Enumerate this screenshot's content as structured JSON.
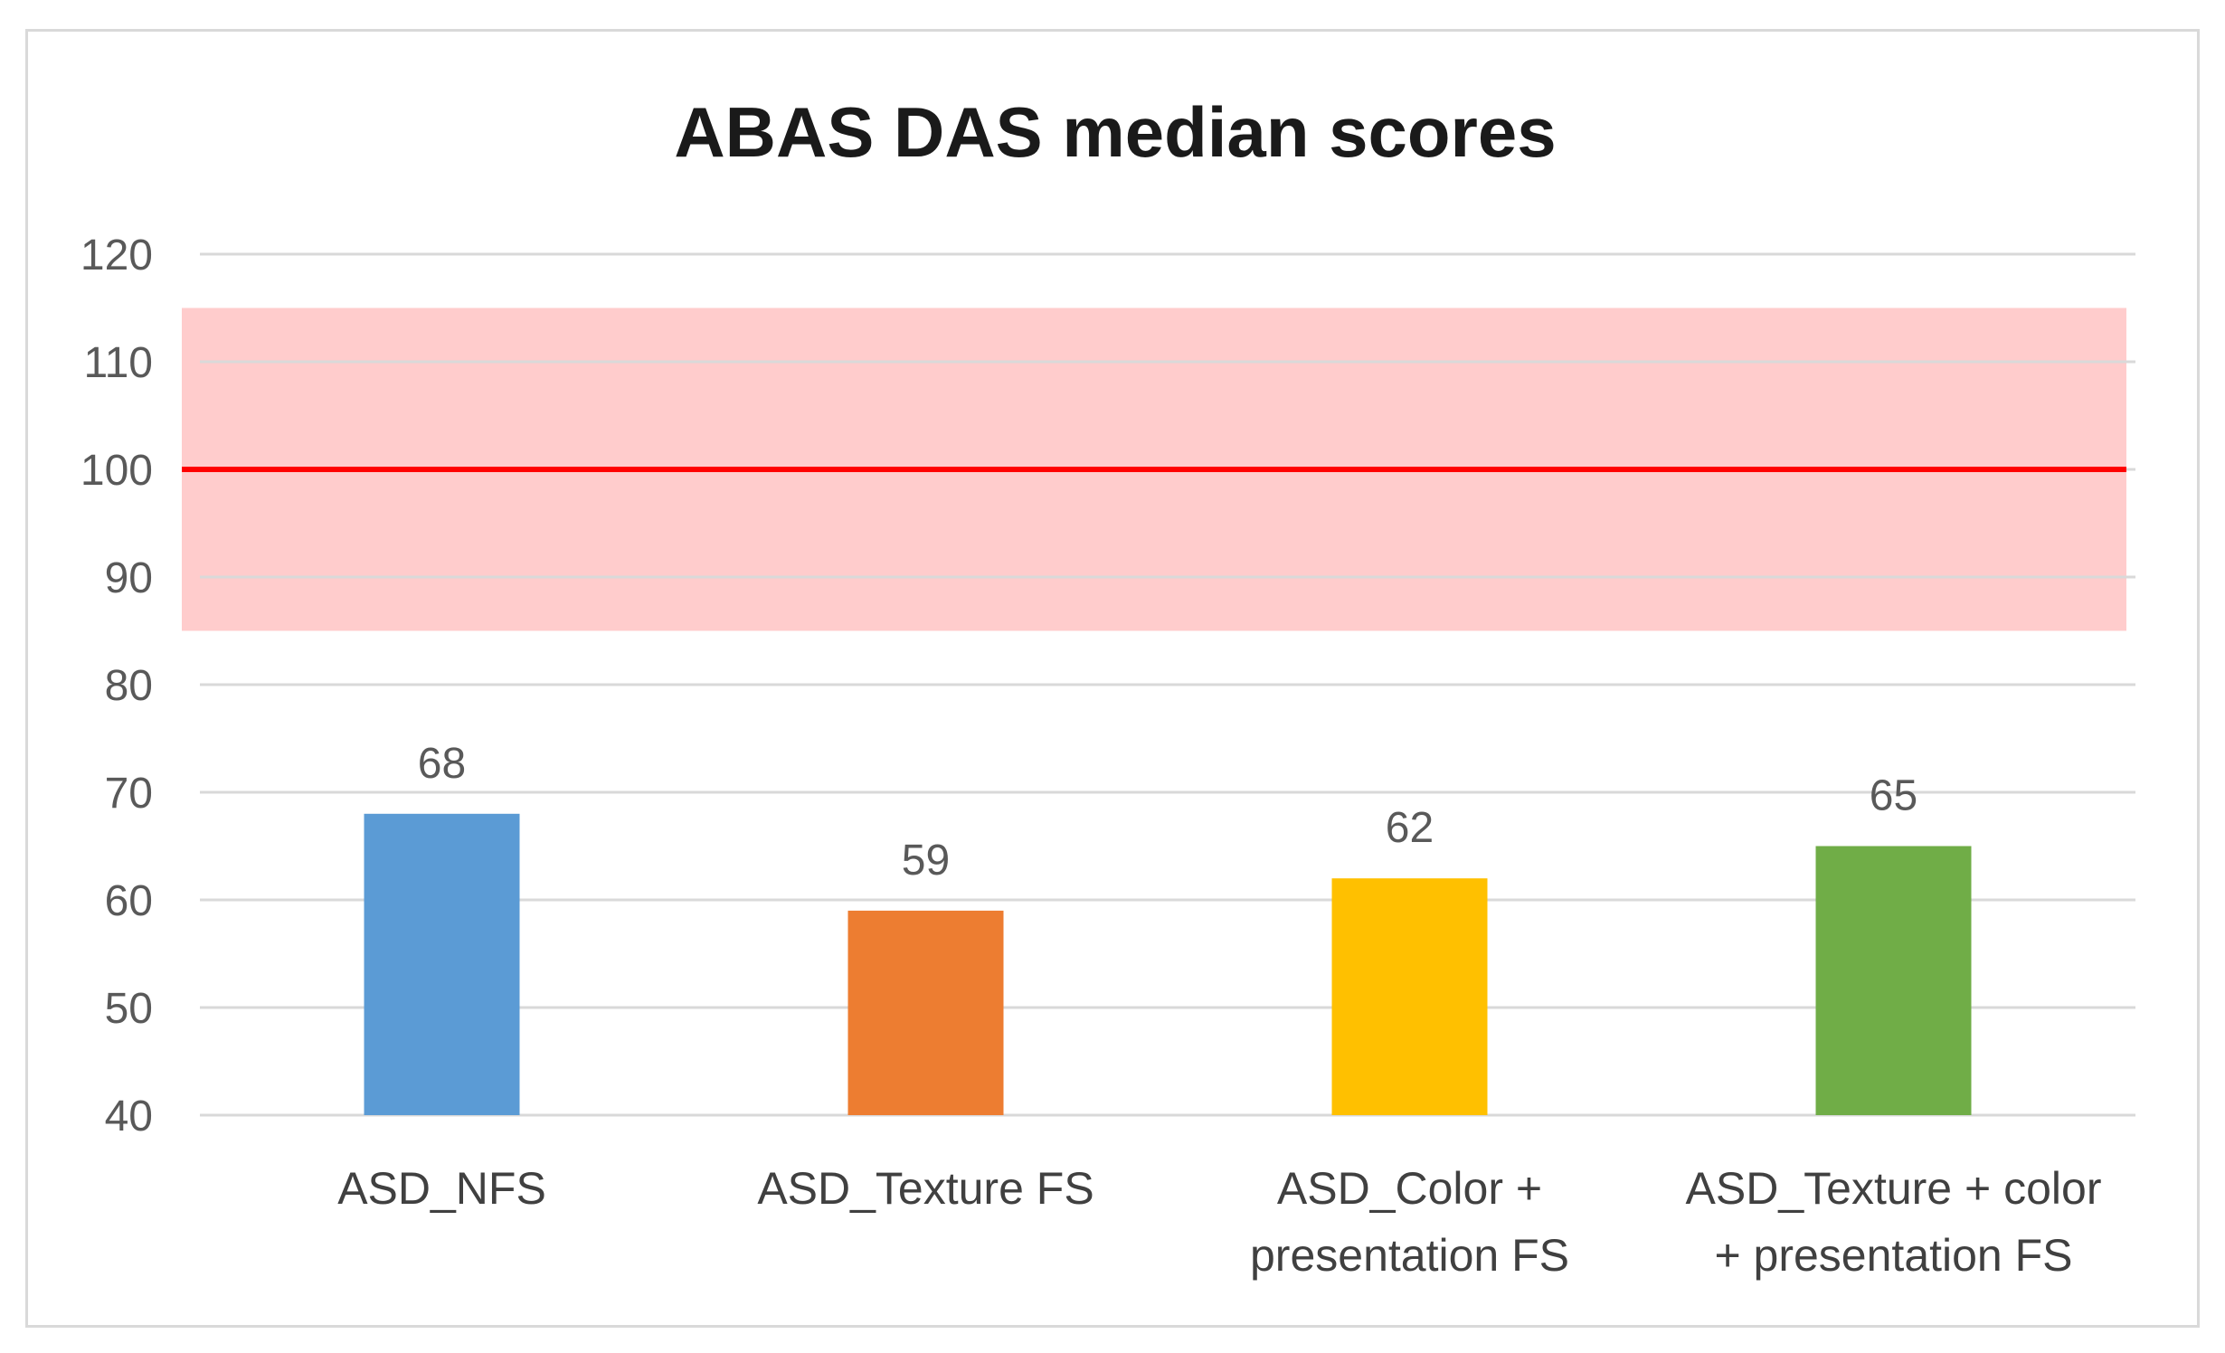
{
  "chart_data": {
    "type": "bar",
    "title": "ABAS DAS median scores",
    "xlabel": "",
    "ylabel": "",
    "ylim": [
      40,
      120
    ],
    "yticks": [
      40,
      50,
      60,
      70,
      80,
      90,
      100,
      110,
      120
    ],
    "ytick_labels": [
      "40",
      "50",
      "60",
      "70",
      "80",
      "90",
      "100",
      "110",
      "120"
    ],
    "grid": true,
    "legend": "none",
    "categories": [
      [
        "ASD_NFS"
      ],
      [
        "ASD_Texture FS"
      ],
      [
        "ASD_Color +",
        "presentation FS"
      ],
      [
        "ASD_Texture + color",
        "+ presentation FS"
      ]
    ],
    "values": [
      68,
      59,
      62,
      65
    ],
    "data_labels": [
      "68",
      "59",
      "62",
      "65"
    ],
    "bar_colors": [
      "#5b9bd5",
      "#ed7d31",
      "#ffc000",
      "#70ad47"
    ],
    "reference_line": {
      "value": 100,
      "color": "#ff0000"
    },
    "reference_band": {
      "from": 85,
      "to": 115,
      "color": "#ffcccc"
    }
  }
}
